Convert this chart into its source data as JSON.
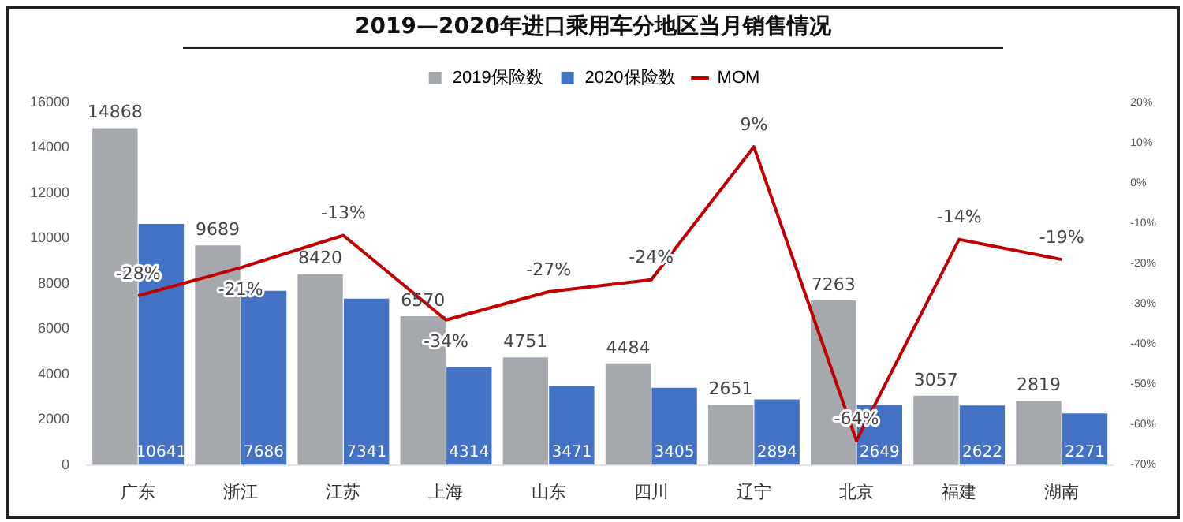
{
  "chart_data": {
    "type": "bar",
    "title": "2019—2020年进口乘用车分地区当月销售情况",
    "categories": [
      "广东",
      "浙江",
      "江苏",
      "上海",
      "山东",
      "四川",
      "辽宁",
      "北京",
      "福建",
      "湖南"
    ],
    "series": [
      {
        "name": "2019保险数",
        "color": "#a5a9ae",
        "values": [
          14868,
          9689,
          8420,
          6570,
          4751,
          4484,
          2651,
          7263,
          3057,
          2819
        ],
        "value_labels": [
          "14868",
          "9689",
          "8420",
          "6570",
          "4751",
          "4484",
          "2651",
          "7263",
          "3057",
          "2819"
        ]
      },
      {
        "name": "2020保险数",
        "color": "#4472c4",
        "values": [
          10641,
          7686,
          7341,
          4314,
          3471,
          3405,
          2894,
          2649,
          2622,
          2271
        ],
        "value_labels": [
          "10641",
          "7686",
          "7341",
          "4314",
          "3471",
          "3405",
          "2894",
          "2649",
          "2622",
          "2271"
        ]
      },
      {
        "name": "MOM",
        "type": "line",
        "axis": "y2",
        "color": "#c00000",
        "values": [
          -28,
          -21,
          -13,
          -34,
          -27,
          -24,
          9,
          -64,
          -14,
          -19
        ],
        "value_labels": [
          "-28%",
          "-21%",
          "-13%",
          "-34%",
          "-27%",
          "-24%",
          "9%",
          "-64%",
          "-14%",
          "-19%"
        ]
      }
    ],
    "ylim": [
      0,
      16000
    ],
    "yticks": [
      0,
      2000,
      4000,
      6000,
      8000,
      10000,
      12000,
      14000,
      16000
    ],
    "y2lim": [
      -70,
      20
    ],
    "y2ticks": [
      {
        "value": -70,
        "label": "-70%"
      },
      {
        "value": -60,
        "label": "-60%"
      },
      {
        "value": -50,
        "label": "-50%"
      },
      {
        "value": -40,
        "label": "-40%"
      },
      {
        "value": -30,
        "label": "-30%"
      },
      {
        "value": -20,
        "label": "-20%"
      },
      {
        "value": -10,
        "label": "-10%"
      },
      {
        "value": 0,
        "label": "0%"
      },
      {
        "value": 10,
        "label": "10%"
      },
      {
        "value": 20,
        "label": "20%"
      }
    ],
    "legend": "top",
    "grid": false,
    "marker": "none"
  }
}
